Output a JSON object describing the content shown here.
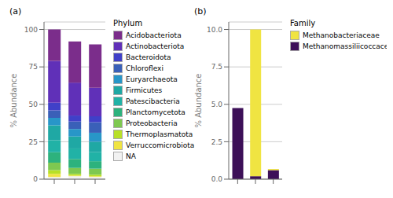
{
  "chart_data": [
    {
      "type": "bar",
      "title": "(a)",
      "y_label": "% Abundance",
      "categories": [
        null,
        null,
        null
      ],
      "stacked": true,
      "grid": true,
      "legend": "right",
      "legend_title": "Phylum",
      "ylim": [
        0,
        105
      ],
      "yticks": [
        0,
        25,
        50,
        75,
        100
      ],
      "series": [
        {
          "name": "NA",
          "color": "#f2f2f2",
          "values": [
            1.5,
            2.0,
            1.5
          ]
        },
        {
          "name": "Verruccomicrobiota",
          "color": "#f0e442",
          "values": [
            2.0,
            0.5,
            0.5
          ]
        },
        {
          "name": "Thermoplasmatota",
          "color": "#b8e027",
          "values": [
            2.5,
            1.0,
            1.0
          ]
        },
        {
          "name": "Proteobacteria",
          "color": "#7ec850",
          "values": [
            5.0,
            4.0,
            4.0
          ]
        },
        {
          "name": "Planctomycetota",
          "color": "#2db27d",
          "values": [
            7.0,
            6.0,
            5.0
          ]
        },
        {
          "name": "Patescibacteria",
          "color": "#21b2a6",
          "values": [
            8.0,
            7.0,
            6.0
          ]
        },
        {
          "name": "Firmicutes",
          "color": "#1fa8a4",
          "values": [
            10.0,
            8.0,
            7.0
          ]
        },
        {
          "name": "Euryarchaeota",
          "color": "#2896c8",
          "values": [
            5.0,
            5.0,
            6.0
          ]
        },
        {
          "name": "Chloroflexi",
          "color": "#3a60b8",
          "values": [
            5.0,
            5.0,
            7.0
          ]
        },
        {
          "name": "Bacteroidota",
          "color": "#4040c8",
          "values": [
            5.0,
            4.0,
            4.0
          ]
        },
        {
          "name": "Actinobacteriota",
          "color": "#6030b8",
          "values": [
            28.0,
            22.0,
            19.0
          ]
        },
        {
          "name": "Acidobacteriota",
          "color": "#7b2d8b",
          "values": [
            21.0,
            27.5,
            29.0
          ]
        }
      ]
    },
    {
      "type": "bar",
      "title": "(b)",
      "y_label": "% Abundance",
      "categories": [
        null,
        null,
        null
      ],
      "stacked": true,
      "grid": true,
      "legend": "right",
      "legend_title": "Family",
      "ylim": [
        0,
        10.5
      ],
      "yticks": [
        {
          "value": 0,
          "label": "0.0"
        },
        2.5,
        {
          "value": 5,
          "label": "5.0"
        },
        7.5,
        {
          "value": 10,
          "label": "10.0"
        }
      ],
      "series": [
        {
          "name": "Methanomassiliicoccaceae",
          "color": "#3d1058",
          "values": [
            4.75,
            0.2,
            0.6
          ]
        },
        {
          "name": "Methanobacteriaceae",
          "color": "#f0e442",
          "values": [
            0.0,
            9.8,
            0.08
          ]
        }
      ]
    }
  ]
}
